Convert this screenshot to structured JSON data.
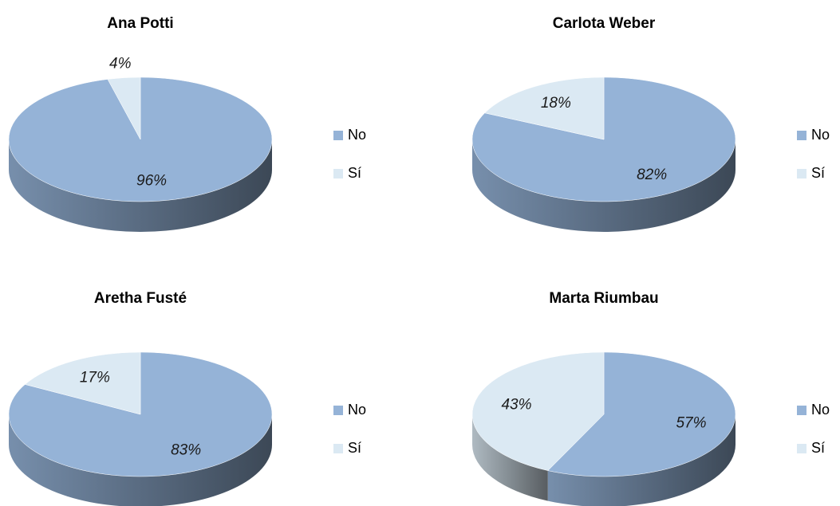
{
  "chart_data": [
    {
      "type": "pie",
      "title": "Ana Potti",
      "categories": [
        "No",
        "Sí"
      ],
      "values": [
        96,
        4
      ],
      "value_labels": [
        "96%",
        "4%"
      ],
      "colors": [
        "#95b3d7",
        "#dbe9f3"
      ],
      "legend": "right"
    },
    {
      "type": "pie",
      "title": "Carlota Weber",
      "categories": [
        "No",
        "Sí"
      ],
      "values": [
        82,
        18
      ],
      "value_labels": [
        "82%",
        "18%"
      ],
      "colors": [
        "#95b3d7",
        "#dbe9f3"
      ],
      "legend": "right"
    },
    {
      "type": "pie",
      "title": "Aretha Fusté",
      "categories": [
        "No",
        "Sí"
      ],
      "values": [
        83,
        17
      ],
      "value_labels": [
        "83%",
        "17%"
      ],
      "colors": [
        "#95b3d7",
        "#dbe9f3"
      ],
      "legend": "right"
    },
    {
      "type": "pie",
      "title": "Marta Riumbau",
      "categories": [
        "No",
        "Sí"
      ],
      "values": [
        57,
        43
      ],
      "value_labels": [
        "57%",
        "43%"
      ],
      "colors": [
        "#95b3d7",
        "#dbe9f3"
      ],
      "legend": "right"
    }
  ]
}
